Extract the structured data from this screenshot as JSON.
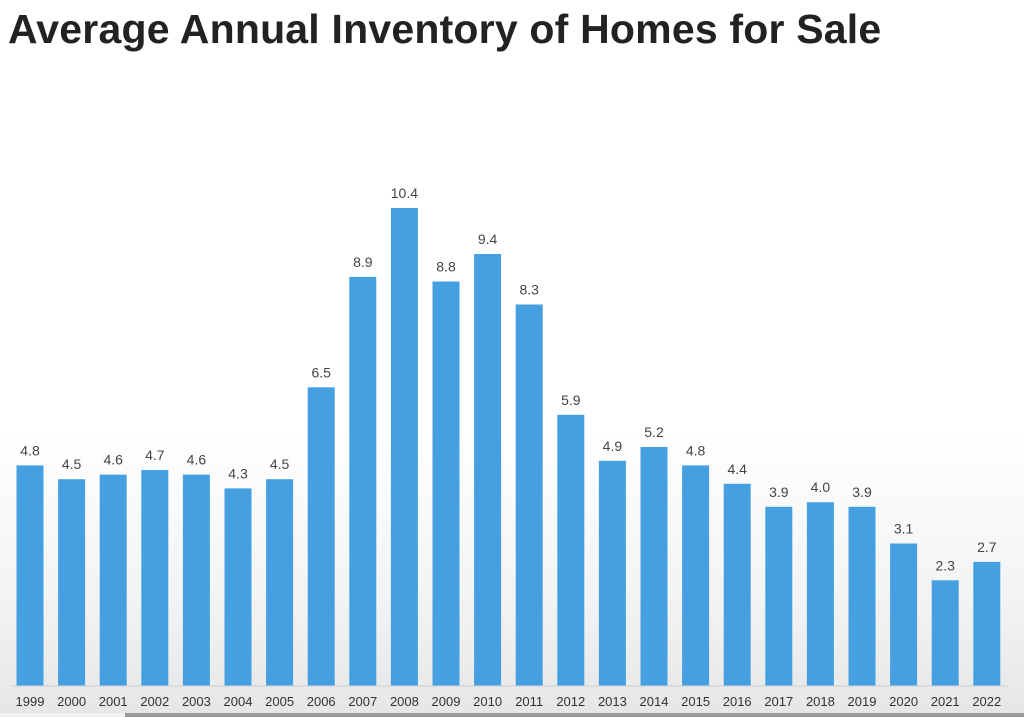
{
  "chart_data": {
    "type": "bar",
    "title": "Average Annual Inventory of Homes for Sale",
    "xlabel": "",
    "ylabel": "",
    "categories": [
      "1999",
      "2000",
      "2001",
      "2002",
      "2003",
      "2004",
      "2005",
      "2006",
      "2007",
      "2008",
      "2009",
      "2010",
      "2011",
      "2012",
      "2013",
      "2014",
      "2015",
      "2016",
      "2017",
      "2018",
      "2019",
      "2020",
      "2021",
      "2022"
    ],
    "values": [
      4.8,
      4.5,
      4.6,
      4.7,
      4.6,
      4.3,
      4.5,
      6.5,
      8.9,
      10.4,
      8.8,
      9.4,
      8.3,
      5.9,
      4.9,
      5.2,
      4.8,
      4.4,
      3.9,
      4.0,
      3.9,
      3.1,
      2.3,
      2.7
    ],
    "value_labels": [
      "4.8",
      "4.5",
      "4.6",
      "4.7",
      "4.6",
      "4.3",
      "4.5",
      "6.5",
      "8.9",
      "10.4",
      "8.8",
      "9.4",
      "8.3",
      "5.9",
      "4.9",
      "5.2",
      "4.8",
      "4.4",
      "3.9",
      "4.0",
      "3.9",
      "3.1",
      "2.3",
      "2.7"
    ],
    "ylim": [
      0,
      10.4
    ],
    "grid": false,
    "legend": "none",
    "bar_color": "#45a0e2"
  }
}
